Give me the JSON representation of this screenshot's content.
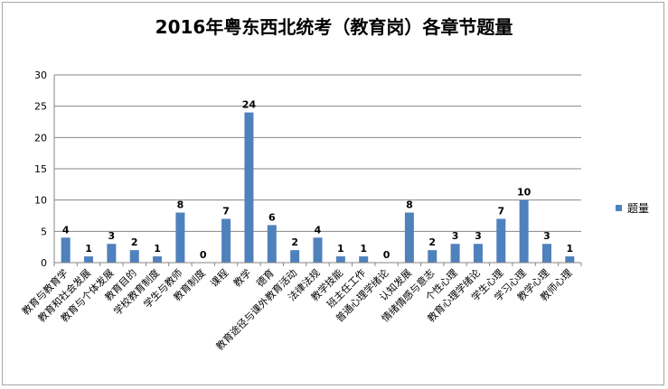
{
  "chart_data": {
    "type": "bar",
    "title": "2016年粤东西北统考（教育岗）各章节题量",
    "categories": [
      "教育与教育学",
      "教育和社会发展",
      "教育与个体发展",
      "教育目的",
      "学校教育制度",
      "学生与教师",
      "教育制度",
      "课程",
      "教学",
      "德育",
      "教育途径与课外教育活动",
      "法律法规",
      "教学技能",
      "班主任工作",
      "普通心理学绪论",
      "认知发展",
      "情绪情感与意志",
      "个性心理",
      "教育心理学绪论",
      "学生心理",
      "学习心理",
      "教学心理",
      "教师心理"
    ],
    "series": [
      {
        "name": "题量",
        "values": [
          4,
          1,
          3,
          2,
          1,
          8,
          0,
          7,
          24,
          6,
          2,
          4,
          1,
          1,
          0,
          8,
          2,
          3,
          3,
          7,
          10,
          3,
          1
        ]
      }
    ],
    "ylim": [
      0,
      30
    ],
    "yticks": [
      0,
      5,
      10,
      15,
      20,
      25,
      30
    ],
    "grid": true,
    "legend": "right",
    "color": "#4f81bd"
  }
}
